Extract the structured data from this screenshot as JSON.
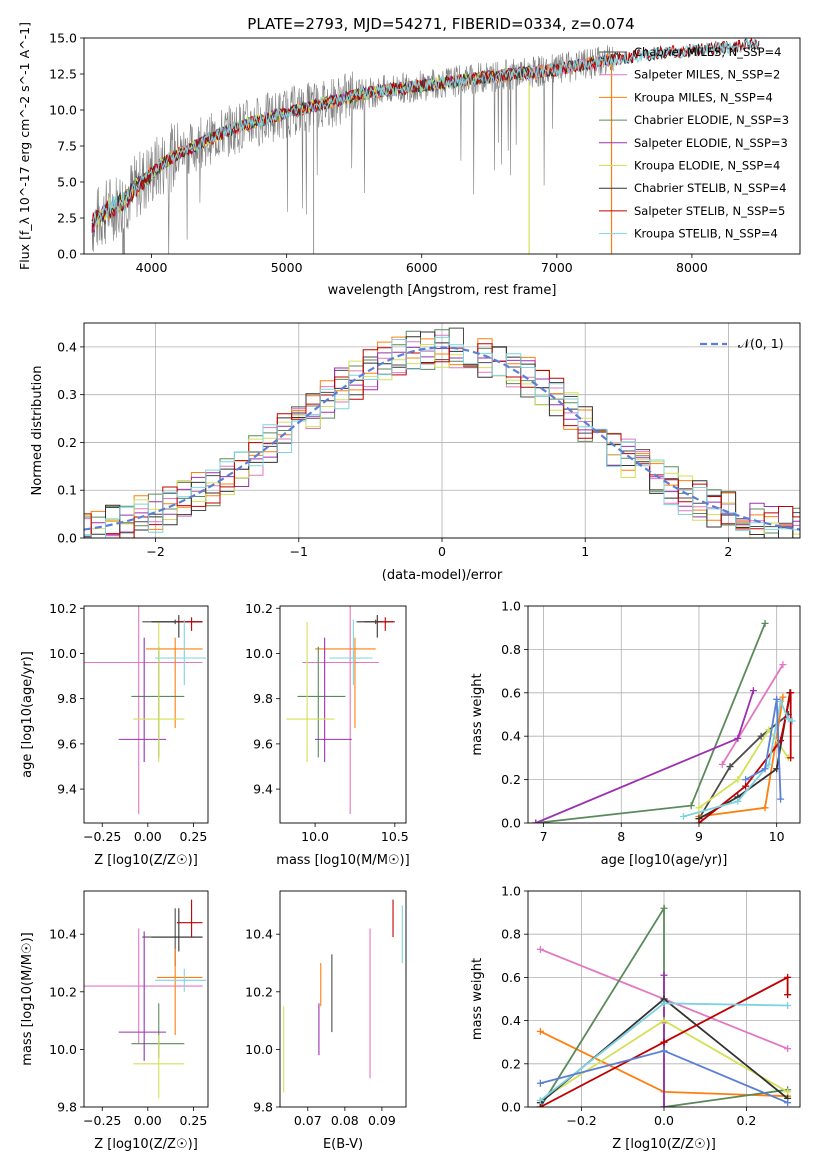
{
  "figure": {
    "title": "PLATE=2793, MJD=54271, FIBERID=0334, z=0.074"
  },
  "colors": {
    "Chabrier MILES": "#4c4c4c",
    "Salpeter MILES": "#e377c2",
    "Kroupa MILES": "#ff7f0e",
    "Chabrier ELODIE": "#5a8a5a",
    "Salpeter ELODIE": "#9b30b0",
    "Kroupa ELODIE": "#d4e157",
    "Chabrier STELIB": "#333333",
    "Salpeter STELIB": "#c00000",
    "Kroupa STELIB": "#7fd3e0",
    "data": "#7f7f7f",
    "gauss": "#5b7fd6"
  },
  "chart_data": [
    {
      "id": "spectrum",
      "type": "line",
      "xlabel": "wavelength [Angstrom, rest frame]",
      "ylabel": "Flux [f_λ 10^-17 erg cm^-2 s^-1 A^-1]",
      "xlim": [
        3500,
        8800
      ],
      "ylim": [
        0,
        15
      ],
      "xticks": [
        4000,
        5000,
        6000,
        7000,
        8000
      ],
      "yticks": [
        "0.0",
        "2.5",
        "5.0",
        "7.5",
        "10.0",
        "12.5",
        "15.0"
      ],
      "legend_position": "right",
      "legend": [
        "Chabrier MILES, N_SSP=4",
        "Salpeter MILES, N_SSP=2",
        "Kroupa MILES, N_SSP=4",
        "Chabrier ELODIE, N_SSP=3",
        "Salpeter ELODIE, N_SSP=3",
        "Kroupa ELODIE, N_SSP=4",
        "Chabrier STELIB, N_SSP=4",
        "Salpeter STELIB, N_SSP=5",
        "Kroupa STELIB, N_SSP=4"
      ],
      "continuum": {
        "x": [
          3550,
          3700,
          3800,
          3900,
          4000,
          4100,
          4200,
          4300,
          4500,
          4700,
          5000,
          5300,
          5600,
          6000,
          6500,
          7000,
          7400,
          7800,
          8200,
          8500
        ],
        "y": [
          2.0,
          3.2,
          3.7,
          4.8,
          5.6,
          6.4,
          7.0,
          7.4,
          8.3,
          9.0,
          9.8,
          10.5,
          11.2,
          11.7,
          12.3,
          12.8,
          13.5,
          14.0,
          14.3,
          14.6
        ]
      }
    },
    {
      "id": "residuals",
      "type": "histogram",
      "xlabel": "(data-model)/error",
      "ylabel": "Normed distribution",
      "xlim": [
        -2.5,
        2.5
      ],
      "ylim": [
        0,
        0.45
      ],
      "xticks": [
        "−2",
        "−1",
        "0",
        "1",
        "2"
      ],
      "yticks": [
        "0.0",
        "0.1",
        "0.2",
        "0.3",
        "0.4"
      ],
      "legend": "𝒩(0, 1)",
      "legend_position": "top-right",
      "grid": true
    },
    {
      "id": "age-vs-Z",
      "type": "scatter",
      "xlabel": "Z [log10(Z/Z☉)]",
      "ylabel": "age  [log10(age/yr)]",
      "xlim": [
        -0.35,
        0.33
      ],
      "ylim": [
        9.25,
        10.21
      ],
      "xticks": [
        "−0.25",
        "0.00",
        "0.25"
      ],
      "yticks": [
        "9.4",
        "9.6",
        "9.8",
        "10.0",
        "10.2"
      ],
      "points": [
        {
          "model": "Chabrier MILES",
          "x": 0.15,
          "y": 10.14,
          "xerr": [
            0.18,
            0.15
          ],
          "yerr": [
            0.01,
            0.01
          ]
        },
        {
          "model": "Salpeter MILES",
          "x": -0.05,
          "y": 9.96,
          "xerr": [
            0.35,
            0.35
          ],
          "yerr": [
            0.67,
            0.25
          ]
        },
        {
          "model": "Kroupa MILES",
          "x": 0.15,
          "y": 10.02,
          "xerr": [
            0.16,
            0.15
          ],
          "yerr": [
            0.35,
            0.05
          ]
        },
        {
          "model": "Chabrier ELODIE",
          "x": 0.06,
          "y": 9.81,
          "xerr": [
            0.15,
            0.14
          ],
          "yerr": [
            0.27,
            0.22
          ]
        },
        {
          "model": "Salpeter ELODIE",
          "x": -0.02,
          "y": 9.62,
          "xerr": [
            0.14,
            0.12
          ],
          "yerr": [
            0.1,
            0.45
          ]
        },
        {
          "model": "Kroupa ELODIE",
          "x": 0.06,
          "y": 9.71,
          "xerr": [
            0.14,
            0.14
          ],
          "yerr": [
            0.19,
            0.43
          ]
        },
        {
          "model": "Chabrier STELIB",
          "x": 0.17,
          "y": 10.14,
          "xerr": [
            0.15,
            0.13
          ],
          "yerr": [
            0.07,
            0.03
          ]
        },
        {
          "model": "Salpeter STELIB",
          "x": 0.24,
          "y": 10.14,
          "xerr": [
            0.08,
            0.06
          ],
          "yerr": [
            0.04,
            0.02
          ]
        },
        {
          "model": "Kroupa STELIB",
          "x": 0.2,
          "y": 9.98,
          "xerr": [
            0.16,
            0.12
          ],
          "yerr": [
            0.12,
            0.17
          ]
        }
      ]
    },
    {
      "id": "age-vs-mass",
      "type": "scatter",
      "xlabel": "mass [log10(M/M☉)]",
      "ylabel": "",
      "xlim": [
        9.78,
        10.57
      ],
      "ylim": [
        9.25,
        10.21
      ],
      "xticks": [
        "10.0",
        "10.5"
      ],
      "yticks": [
        "9.4",
        "9.6",
        "9.8",
        "10.0",
        "10.2"
      ],
      "points": [
        {
          "model": "Chabrier MILES",
          "x": 10.38,
          "y": 10.14,
          "xerr": [
            0.07,
            0.04
          ],
          "yerr": [
            0.01,
            0.01
          ]
        },
        {
          "model": "Salpeter MILES",
          "x": 10.22,
          "y": 9.96,
          "xerr": [
            0.3,
            0.18
          ],
          "yerr": [
            0.67,
            0.25
          ]
        },
        {
          "model": "Kroupa MILES",
          "x": 10.25,
          "y": 10.02,
          "xerr": [
            0.25,
            0.13
          ],
          "yerr": [
            0.35,
            0.05
          ]
        },
        {
          "model": "Chabrier ELODIE",
          "x": 10.02,
          "y": 9.81,
          "xerr": [
            0.13,
            0.17
          ],
          "yerr": [
            0.27,
            0.22
          ]
        },
        {
          "model": "Salpeter ELODIE",
          "x": 10.06,
          "y": 9.62,
          "xerr": [
            0.06,
            0.17
          ],
          "yerr": [
            0.1,
            0.45
          ]
        },
        {
          "model": "Kroupa ELODIE",
          "x": 9.95,
          "y": 9.71,
          "xerr": [
            0.13,
            0.17
          ],
          "yerr": [
            0.19,
            0.43
          ]
        },
        {
          "model": "Chabrier STELIB",
          "x": 10.39,
          "y": 10.14,
          "xerr": [
            0.13,
            0.1
          ],
          "yerr": [
            0.07,
            0.03
          ]
        },
        {
          "model": "Salpeter STELIB",
          "x": 10.44,
          "y": 10.14,
          "xerr": [
            0.05,
            0.06
          ],
          "yerr": [
            0.04,
            0.02
          ]
        },
        {
          "model": "Kroupa STELIB",
          "x": 10.24,
          "y": 9.98,
          "xerr": [
            0.15,
            0.12
          ],
          "yerr": [
            0.12,
            0.17
          ]
        }
      ]
    },
    {
      "id": "weight-vs-age",
      "type": "line",
      "xlabel": "age  [log10(age/yr)]",
      "ylabel": "mass weight",
      "xlim": [
        6.8,
        10.3
      ],
      "ylim": [
        0,
        1
      ],
      "xticks": [
        "7",
        "8",
        "9",
        "10"
      ],
      "yticks": [
        "0.0",
        "0.2",
        "0.4",
        "0.6",
        "0.8",
        "1.0"
      ],
      "grid": true,
      "series": [
        {
          "model": "Chabrier MILES",
          "x": [
            9.0,
            9.4,
            9.8,
            10.15
          ],
          "y": [
            0.02,
            0.26,
            0.4,
            0.5
          ]
        },
        {
          "model": "Salpeter MILES",
          "x": [
            9.3,
            10.08
          ],
          "y": [
            0.27,
            0.73
          ]
        },
        {
          "model": "Kroupa MILES",
          "x": [
            9.0,
            9.85,
            9.98,
            10.08
          ],
          "y": [
            0.03,
            0.07,
            0.35,
            0.58
          ]
        },
        {
          "model": "Chabrier ELODIE",
          "x": [
            6.9,
            8.9,
            9.85
          ],
          "y": [
            0.0,
            0.08,
            0.92
          ]
        },
        {
          "model": "Salpeter ELODIE",
          "x": [
            6.9,
            9.5,
            9.7
          ],
          "y": [
            0.0,
            0.39,
            0.61
          ]
        },
        {
          "model": "Kroupa ELODIE",
          "x": [
            9.0,
            9.5,
            9.9,
            10.15
          ],
          "y": [
            0.07,
            0.2,
            0.43,
            0.3
          ]
        },
        {
          "model": "Chabrier STELIB",
          "x": [
            9.0,
            9.5,
            10.0,
            10.17
          ],
          "y": [
            0.02,
            0.12,
            0.25,
            0.6
          ]
        },
        {
          "model": "Salpeter STELIB",
          "x": [
            9.0,
            9.6,
            10.05,
            10.18,
            10.18
          ],
          "y": [
            0.0,
            0.17,
            0.38,
            0.6,
            0.3
          ]
        },
        {
          "model": "Kroupa STELIB",
          "x": [
            8.8,
            9.5,
            9.9,
            10.05,
            10.15,
            10.2
          ],
          "y": [
            0.03,
            0.1,
            0.27,
            0.56,
            0.48,
            0.47
          ]
        },
        {
          "model": "gauss",
          "x": [
            9.6,
            9.85,
            10.0,
            10.05
          ],
          "y": [
            0.2,
            0.25,
            0.57,
            0.11
          ]
        }
      ]
    },
    {
      "id": "mass-vs-Z",
      "type": "scatter",
      "xlabel": "Z [log10(Z/Z☉)]",
      "ylabel": "mass [log10(M/M☉)]",
      "xlim": [
        -0.35,
        0.33
      ],
      "ylim": [
        9.8,
        10.55
      ],
      "xticks": [
        "−0.25",
        "0.00",
        "0.25"
      ],
      "yticks": [
        "9.8",
        "10.0",
        "10.2",
        "10.4"
      ],
      "points": [
        {
          "model": "Chabrier MILES",
          "x": 0.15,
          "y": 10.39,
          "xerr": [
            0.18,
            0.15
          ],
          "yerr": [
            0.1,
            0.1
          ]
        },
        {
          "model": "Salpeter MILES",
          "x": -0.05,
          "y": 10.22,
          "xerr": [
            0.3,
            0.35
          ],
          "yerr": [
            0.2,
            0.2
          ]
        },
        {
          "model": "Kroupa MILES",
          "x": 0.15,
          "y": 10.25,
          "xerr": [
            0.1,
            0.15
          ],
          "yerr": [
            0.2,
            0.1
          ]
        },
        {
          "model": "Chabrier ELODIE",
          "x": 0.06,
          "y": 10.02,
          "xerr": [
            0.15,
            0.14
          ],
          "yerr": [
            0.05,
            0.14
          ]
        },
        {
          "model": "Salpeter ELODIE",
          "x": -0.02,
          "y": 10.06,
          "xerr": [
            0.14,
            0.12
          ],
          "yerr": [
            0.1,
            0.35
          ]
        },
        {
          "model": "Kroupa ELODIE",
          "x": 0.06,
          "y": 9.95,
          "xerr": [
            0.14,
            0.14
          ],
          "yerr": [
            0.12,
            0.1
          ]
        },
        {
          "model": "Chabrier STELIB",
          "x": 0.17,
          "y": 10.39,
          "xerr": [
            0.15,
            0.13
          ],
          "yerr": [
            0.05,
            0.1
          ]
        },
        {
          "model": "Salpeter STELIB",
          "x": 0.24,
          "y": 10.44,
          "xerr": [
            0.08,
            0.06
          ],
          "yerr": [
            0.05,
            0.08
          ]
        },
        {
          "model": "Kroupa STELIB",
          "x": 0.2,
          "y": 10.24,
          "xerr": [
            0.16,
            0.12
          ],
          "yerr": [
            0.04,
            0.04
          ]
        }
      ]
    },
    {
      "id": "mass-vs-ebv",
      "type": "scatter",
      "xlabel": "E(B-V)",
      "ylabel": "",
      "xlim": [
        0.0625,
        0.0965
      ],
      "ylim": [
        9.8,
        10.55
      ],
      "xticks": [
        "0.07",
        "0.08",
        "0.09"
      ],
      "yticks": [
        "9.8",
        "10.0",
        "10.2",
        "10.4"
      ],
      "points": [
        {
          "model": "Kroupa ELODIE",
          "x": 0.0635,
          "y": 10.0,
          "yerr": [
            0.15,
            0.15
          ]
        },
        {
          "model": "Salpeter ELODIE",
          "x": 0.073,
          "y": 10.06,
          "yerr": [
            0.08,
            0.1
          ]
        },
        {
          "model": "Kroupa MILES",
          "x": 0.0735,
          "y": 10.25,
          "yerr": [
            0.1,
            0.05
          ]
        },
        {
          "model": "Chabrier MILES",
          "x": 0.0765,
          "y": 10.2,
          "yerr": [
            0.14,
            0.13
          ]
        },
        {
          "model": "Salpeter MILES",
          "x": 0.0868,
          "y": 10.15,
          "yerr": [
            0.25,
            0.27
          ]
        },
        {
          "model": "Salpeter STELIB",
          "x": 0.093,
          "y": 10.44,
          "yerr": [
            0.05,
            0.08
          ]
        },
        {
          "model": "Kroupa STELIB",
          "x": 0.0955,
          "y": 10.38,
          "yerr": [
            0.08,
            0.12
          ]
        }
      ]
    },
    {
      "id": "weight-vs-Z",
      "type": "line",
      "xlabel": "Z [log10(Z/Z☉)]",
      "ylabel": "mass weight",
      "xlim": [
        -0.33,
        0.33
      ],
      "ylim": [
        0,
        1
      ],
      "xticks": [
        "−0.2",
        "0.0",
        "0.2"
      ],
      "yticks": [
        "0.0",
        "0.2",
        "0.4",
        "0.6",
        "0.8",
        "1.0"
      ],
      "grid": true,
      "series": [
        {
          "model": "Salpeter MILES",
          "x": [
            -0.3,
            0.3
          ],
          "y": [
            0.73,
            0.27
          ]
        },
        {
          "model": "Kroupa MILES",
          "x": [
            -0.3,
            0.0,
            0.3
          ],
          "y": [
            0.35,
            0.07,
            0.05
          ]
        },
        {
          "model": "Chabrier ELODIE",
          "x": [
            -0.3,
            0.0,
            0.0,
            0.0,
            0.3
          ],
          "y": [
            0.0,
            0.92,
            0.5,
            0.0,
            0.08
          ]
        },
        {
          "model": "Salpeter ELODIE",
          "x": [
            0.0,
            0.0,
            0.0
          ],
          "y": [
            0.61,
            0.39,
            0.0
          ]
        },
        {
          "model": "Kroupa ELODIE",
          "x": [
            -0.3,
            0.0,
            0.3
          ],
          "y": [
            0.03,
            0.4,
            0.07
          ]
        },
        {
          "model": "Chabrier STELIB",
          "x": [
            -0.3,
            0.0,
            0.3
          ],
          "y": [
            0.02,
            0.5,
            0.04
          ]
        },
        {
          "model": "Salpeter STELIB",
          "x": [
            -0.3,
            0.0,
            0.3,
            0.3
          ],
          "y": [
            0.0,
            0.3,
            0.6,
            0.52
          ]
        },
        {
          "model": "Kroupa STELIB",
          "x": [
            -0.3,
            0.0,
            0.3
          ],
          "y": [
            0.03,
            0.48,
            0.47
          ]
        },
        {
          "model": "gauss",
          "x": [
            -0.3,
            0.0,
            0.3
          ],
          "y": [
            0.11,
            0.26,
            0.02
          ]
        }
      ]
    }
  ]
}
